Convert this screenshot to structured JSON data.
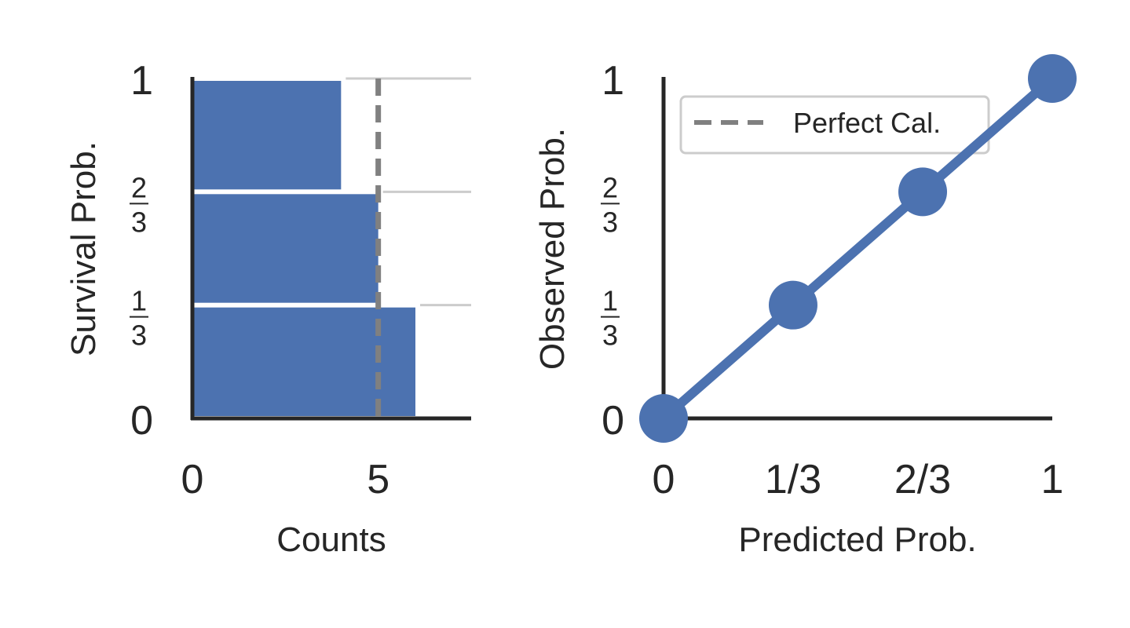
{
  "colors": {
    "bar": "#4c72b0",
    "line": "#4c72b0",
    "reference": "#808080",
    "axis": "#262626",
    "guide": "#cccccc",
    "legend_border": "#cccccc"
  },
  "chart_data": [
    {
      "type": "bar",
      "orientation": "horizontal",
      "categories": [
        "0–1/3",
        "1/3–2/3",
        "2/3–1"
      ],
      "bins": [
        [
          0,
          0.3333
        ],
        [
          0.3333,
          0.6667
        ],
        [
          0.6667,
          1
        ]
      ],
      "values": [
        6,
        5,
        4
      ],
      "reference_line_x": 5,
      "xlabel": "Counts",
      "ylabel": "Survival Prob.",
      "xlim": [
        0,
        7.5
      ],
      "ylim": [
        0,
        1
      ],
      "xticks": [
        {
          "value": 0,
          "label": "0"
        },
        {
          "value": 5,
          "label": "5"
        }
      ],
      "yticks": [
        {
          "value": 0,
          "label": "0"
        },
        {
          "value": 0.3333,
          "num": "1",
          "den": "3"
        },
        {
          "value": 0.6667,
          "num": "2",
          "den": "3"
        },
        {
          "value": 1,
          "label": "1"
        }
      ],
      "grid": false
    },
    {
      "type": "line",
      "series": [
        {
          "x": [
            0,
            0.3333,
            0.6667,
            1
          ],
          "y": [
            0,
            0.3333,
            0.6667,
            1
          ],
          "style": "solid-markers"
        },
        {
          "name": "Perfect Cal.",
          "x": [
            0,
            1
          ],
          "y": [
            0,
            1
          ],
          "style": "dashed"
        }
      ],
      "xlabel": "Predicted Prob.",
      "ylabel": "Observed Prob.",
      "xlim": [
        0,
        1
      ],
      "ylim": [
        0,
        1
      ],
      "xticks": [
        {
          "value": 0,
          "label": "0"
        },
        {
          "value": 0.3333,
          "label": "1/3"
        },
        {
          "value": 0.6667,
          "label": "2/3"
        },
        {
          "value": 1,
          "label": "1"
        }
      ],
      "yticks": [
        {
          "value": 0,
          "label": "0"
        },
        {
          "value": 0.3333,
          "num": "1",
          "den": "3"
        },
        {
          "value": 0.6667,
          "num": "2",
          "den": "3"
        },
        {
          "value": 1,
          "label": "1"
        }
      ],
      "legend": {
        "position": "upper-left",
        "entries": [
          "Perfect Cal."
        ]
      },
      "grid": false
    }
  ]
}
